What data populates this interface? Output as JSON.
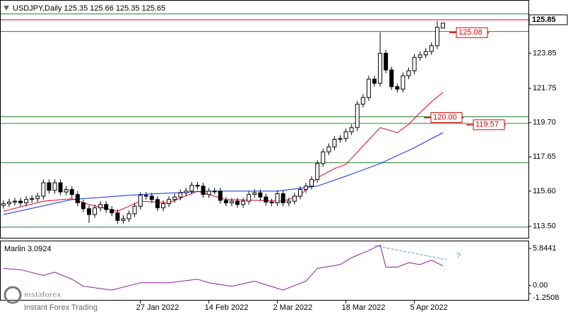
{
  "chart_data": {
    "type": "candlestick",
    "title": "USDJPY,Daily  125.35 125.66 125.35 125.65",
    "categories": [
      null,
      null,
      null,
      null,
      null,
      null,
      null,
      null,
      null,
      null,
      null,
      null,
      null,
      null,
      null,
      null,
      null,
      null,
      null,
      null,
      null,
      null,
      null,
      null,
      "27 Jan 2022",
      null,
      null,
      null,
      null,
      null,
      null,
      null,
      null,
      null,
      null,
      null,
      "14 Feb 2022",
      null,
      null,
      null,
      null,
      null,
      null,
      null,
      null,
      null,
      null,
      null,
      "2 Mar 2022",
      null,
      null,
      null,
      null,
      null,
      null,
      null,
      null,
      null,
      null,
      null,
      "18 Mar 2022",
      null,
      null,
      null,
      null,
      null,
      null,
      null,
      null,
      null,
      null,
      null,
      "5 Apr 2022",
      null,
      null,
      null,
      null,
      null
    ],
    "open": [
      114.75,
      114.85,
      114.95,
      115.0,
      114.9,
      115.1,
      115.15,
      115.3,
      116.1,
      115.65,
      116.1,
      115.55,
      115.7,
      115.4,
      114.9,
      114.55,
      114.2,
      114.6,
      114.8,
      114.5,
      114.3,
      113.85,
      113.95,
      114.25,
      114.7,
      115.35,
      115.3,
      115.1,
      114.6,
      114.85,
      115.1,
      115.25,
      115.5,
      115.6,
      115.95,
      115.9,
      115.4,
      115.6,
      115.6,
      115.05,
      114.9,
      115.0,
      114.8,
      115.0,
      115.4,
      115.5,
      115.25,
      114.95,
      114.9,
      115.45,
      114.9,
      115.0,
      115.3,
      115.7,
      115.9,
      116.3,
      117.25,
      117.95,
      118.25,
      118.7,
      118.75,
      119.15,
      119.4,
      120.8,
      121.2,
      122.3,
      122.05,
      123.85,
      122.85,
      121.85,
      121.7,
      122.5,
      122.8,
      123.6,
      123.75,
      123.95,
      124.3,
      125.35
    ],
    "high": [
      115.05,
      115.15,
      115.2,
      115.2,
      115.3,
      115.35,
      115.5,
      116.3,
      116.3,
      116.3,
      116.3,
      115.9,
      115.9,
      115.6,
      115.1,
      114.75,
      114.8,
      115.0,
      115.0,
      114.7,
      114.5,
      114.15,
      114.45,
      114.9,
      115.55,
      115.55,
      115.5,
      115.3,
      115.05,
      115.3,
      115.45,
      115.7,
      115.8,
      116.15,
      116.15,
      116.1,
      115.8,
      115.8,
      115.8,
      115.25,
      115.2,
      115.2,
      115.2,
      115.6,
      115.7,
      115.7,
      115.45,
      115.15,
      115.65,
      115.65,
      115.2,
      115.5,
      115.9,
      116.1,
      116.5,
      117.45,
      118.15,
      118.45,
      118.9,
      118.95,
      119.35,
      119.6,
      121.0,
      121.4,
      122.5,
      122.5,
      125.09,
      124.05,
      123.05,
      122.05,
      122.7,
      123.0,
      123.8,
      123.95,
      124.15,
      124.5,
      125.77,
      125.66
    ],
    "low": [
      114.55,
      114.65,
      114.75,
      114.7,
      114.7,
      114.9,
      114.95,
      115.1,
      115.45,
      115.45,
      115.35,
      115.35,
      115.2,
      114.7,
      114.35,
      113.7,
      114.0,
      114.4,
      114.3,
      114.1,
      113.65,
      113.65,
      113.75,
      114.05,
      114.5,
      115.1,
      114.9,
      114.4,
      114.4,
      114.65,
      114.9,
      115.05,
      115.3,
      115.4,
      115.7,
      115.2,
      115.2,
      115.4,
      114.85,
      114.7,
      114.7,
      114.6,
      114.6,
      114.8,
      115.2,
      115.05,
      114.75,
      114.7,
      114.7,
      114.7,
      114.7,
      114.8,
      115.1,
      115.5,
      115.7,
      116.1,
      117.05,
      117.75,
      118.05,
      118.5,
      118.55,
      118.95,
      119.2,
      120.6,
      121.0,
      121.85,
      121.85,
      122.65,
      121.65,
      121.5,
      121.5,
      122.3,
      122.6,
      123.4,
      123.55,
      123.75,
      124.1,
      125.35
    ],
    "close": [
      114.85,
      114.95,
      115.0,
      114.9,
      115.1,
      115.15,
      115.3,
      116.1,
      115.65,
      116.1,
      115.55,
      115.7,
      115.4,
      114.9,
      114.55,
      114.2,
      114.6,
      114.8,
      114.5,
      114.3,
      113.85,
      113.95,
      114.25,
      114.7,
      115.35,
      115.3,
      115.1,
      114.6,
      114.85,
      115.1,
      115.25,
      115.5,
      115.6,
      115.95,
      115.9,
      115.4,
      115.6,
      115.6,
      115.05,
      114.9,
      115.0,
      114.8,
      115.0,
      115.4,
      115.5,
      115.25,
      114.95,
      114.9,
      115.45,
      114.9,
      115.0,
      115.3,
      115.7,
      115.9,
      116.3,
      117.25,
      117.95,
      118.25,
      118.7,
      118.75,
      119.15,
      119.4,
      120.8,
      121.2,
      122.3,
      122.05,
      123.85,
      122.85,
      121.85,
      121.7,
      122.5,
      122.8,
      123.6,
      123.75,
      123.95,
      124.3,
      125.4,
      125.65
    ],
    "overlays": [
      {
        "color": "#e0001a",
        "x": [
          0,
          7,
          12,
          15,
          20,
          24,
          29,
          34,
          39,
          44,
          49,
          52,
          55,
          58,
          60,
          63,
          66,
          69,
          71,
          73,
          75,
          77
        ],
        "values": [
          114.4,
          115.0,
          115.15,
          114.8,
          114.4,
          115.0,
          114.9,
          115.6,
          115.1,
          115.05,
          115.0,
          115.35,
          116.4,
          116.95,
          117.2,
          118.3,
          119.4,
          119.1,
          119.6,
          120.3,
          120.95,
          121.5
        ]
      },
      {
        "color": "#0a2be0",
        "x": [
          0,
          12,
          24,
          36,
          48,
          55,
          60,
          66,
          72,
          77
        ],
        "values": [
          114.2,
          115.1,
          115.4,
          115.6,
          115.6,
          115.9,
          116.5,
          117.25,
          118.2,
          119.1
        ]
      }
    ],
    "levels": [
      126.2,
      125.15,
      120.05,
      119.65,
      117.3,
      113.45
    ],
    "level_color": "#2e7d32",
    "price_line": 125.85,
    "price_line_color": "#e0001a",
    "price_tags": [
      125.08,
      {
        "value": 120,
        "label": "120.00"
      },
      119.57
    ],
    "ylim": [
      112.81,
      126.99
    ],
    "yticks": [
      {
        "value": 113.5,
        "label": "113.50"
      },
      {
        "value": 115.6,
        "label": "115.60"
      },
      117.65,
      {
        "value": 119.7,
        "label": "119.70"
      },
      121.75,
      123.85
    ],
    "indicator": {
      "title": "Marlin 3.0924",
      "color": "#8b1a9b",
      "x": [
        0,
        3,
        7,
        9,
        12,
        14,
        19,
        24,
        29,
        34,
        36,
        40,
        44,
        49,
        53,
        55,
        59,
        61,
        64,
        66,
        67,
        69,
        71,
        73,
        75,
        77
      ],
      "values": [
        2.7,
        2.5,
        1.6,
        2.1,
        1.0,
        -0.1,
        -0.7,
        0.45,
        0.45,
        1.0,
        0.45,
        -0.1,
        0.7,
        -0.7,
        0.7,
        2.7,
        3.3,
        4.4,
        5.5,
        6.4,
        2.9,
        2.9,
        3.6,
        3.3,
        4.0,
        3.1
      ],
      "ylim": [
        -2.36,
        6.97
      ],
      "yticks": [
        5.8441,
        {
          "value": 0,
          "label": "0.00"
        },
        -1.2508
      ],
      "annotation": "?"
    },
    "logo": "instaforex",
    "logo_tagline": "Instant Forex Trading"
  }
}
